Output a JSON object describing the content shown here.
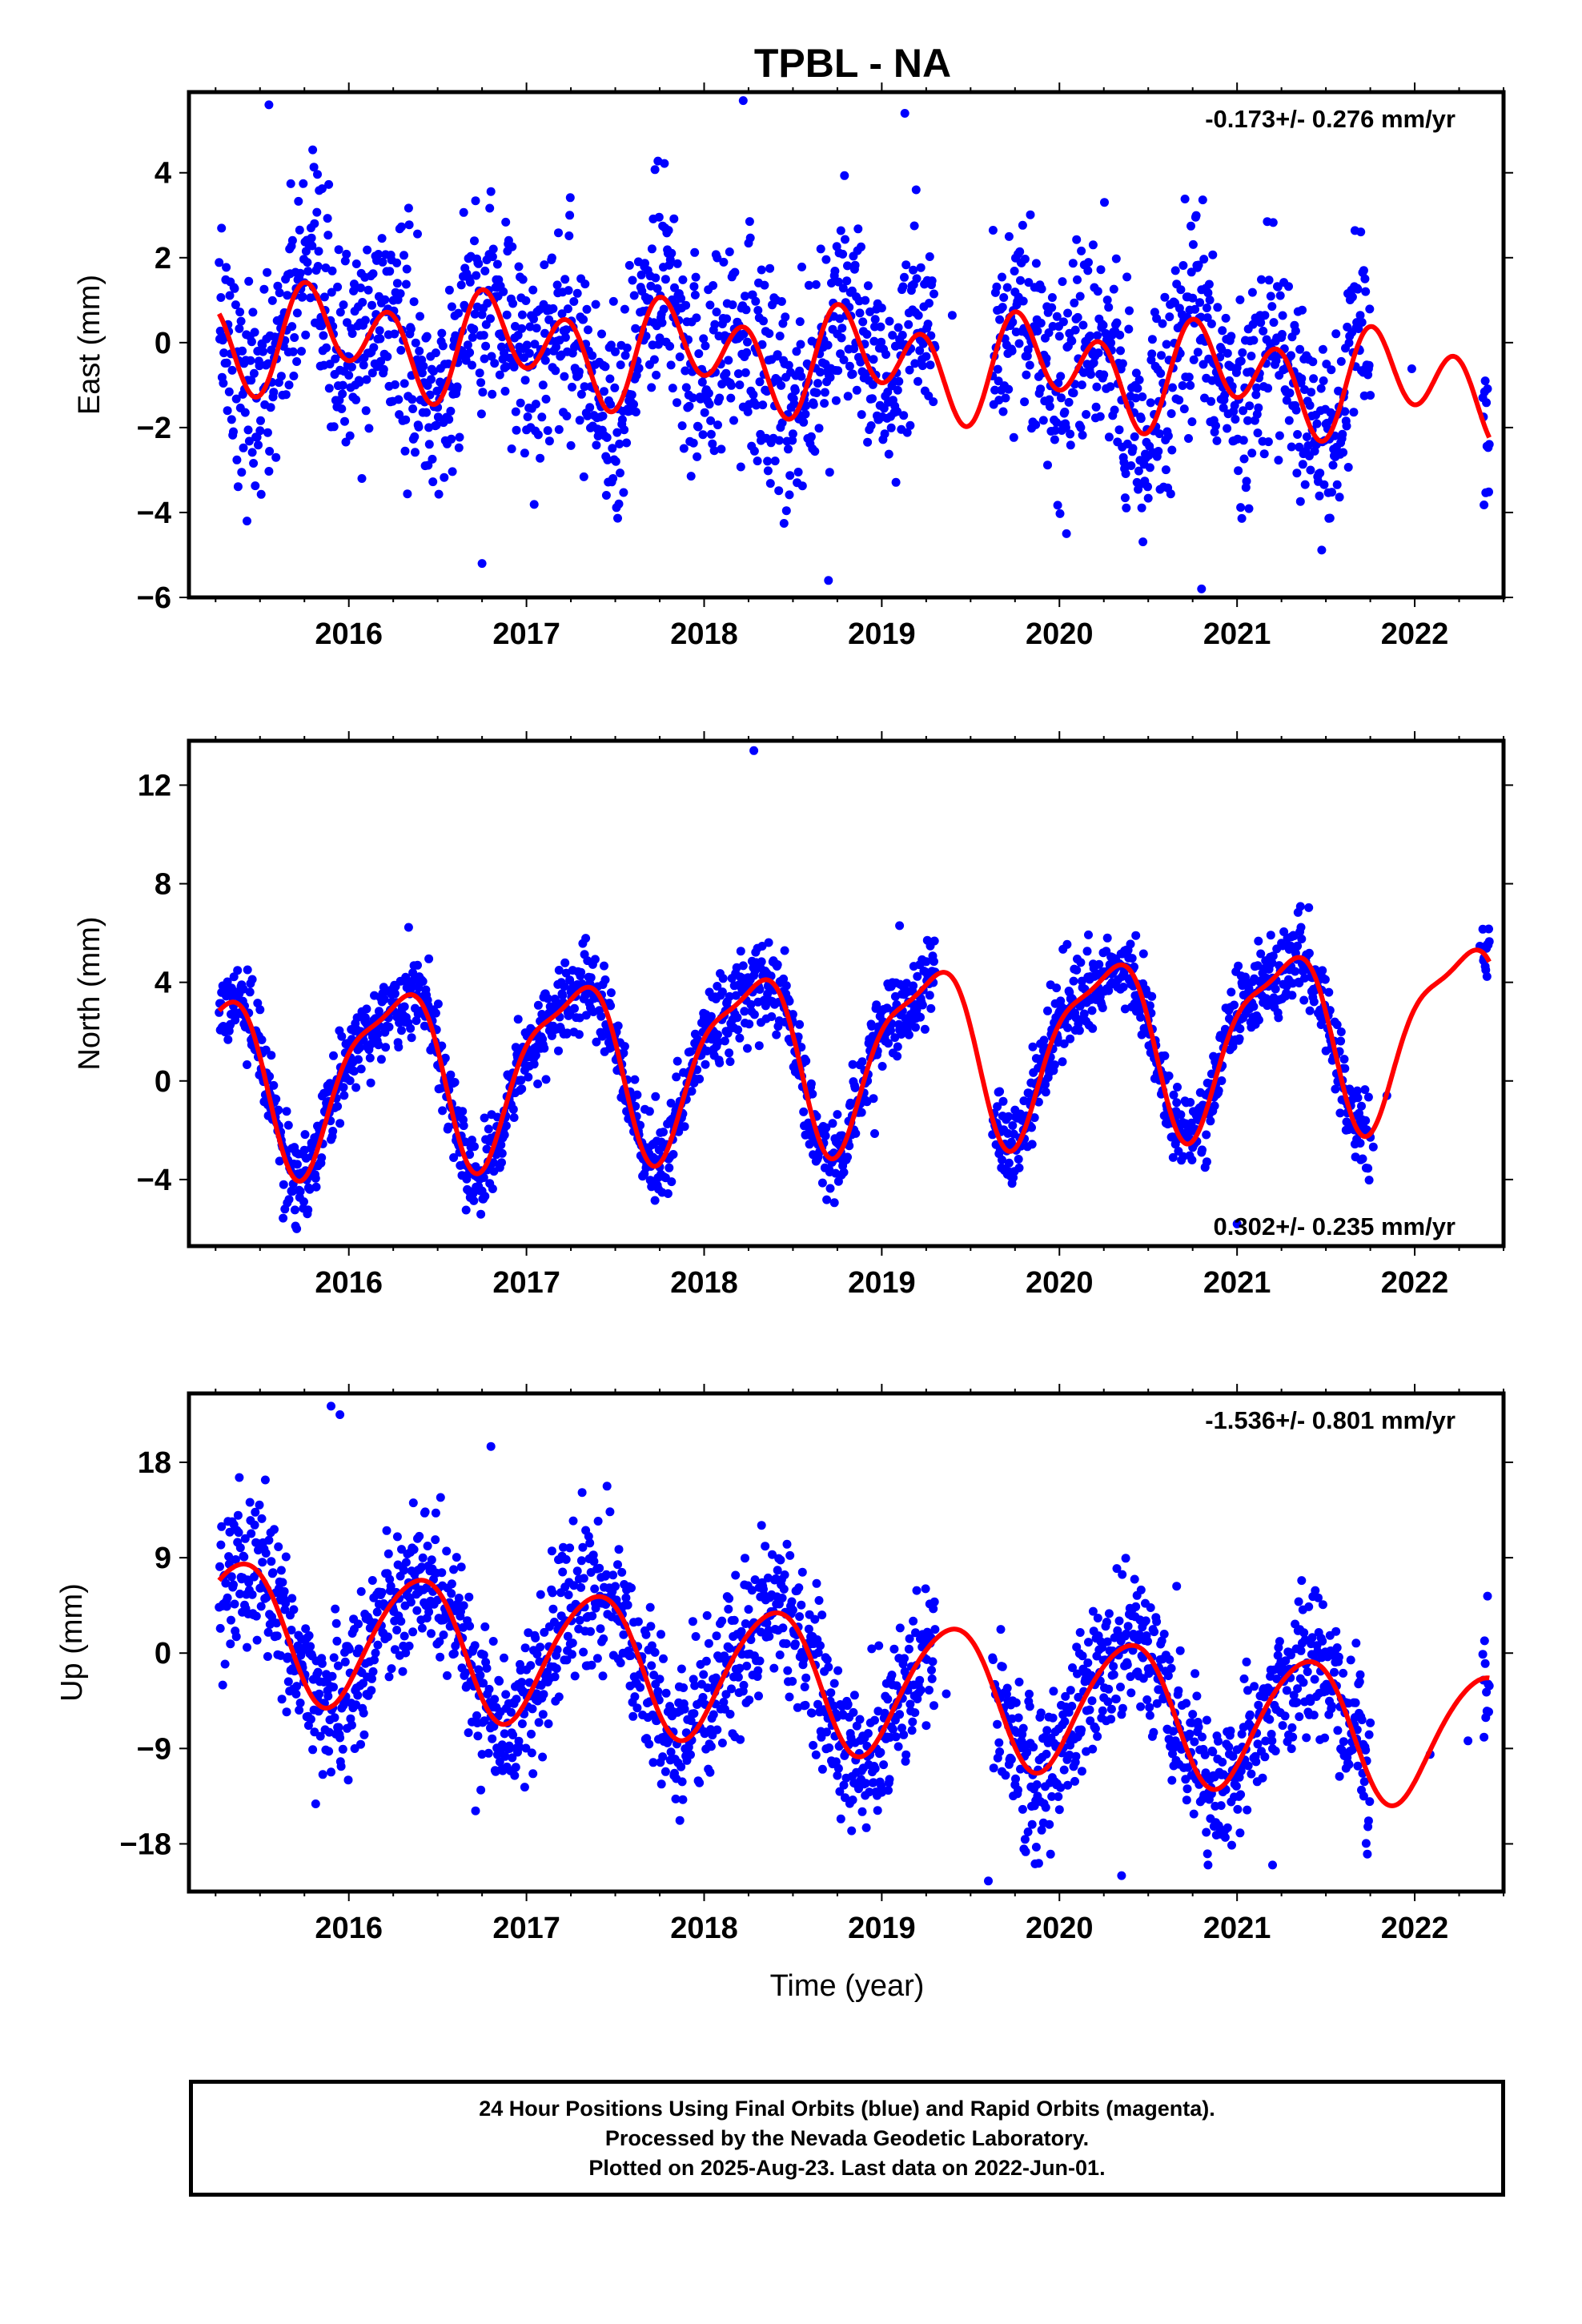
{
  "title": "TPBL - NA",
  "xlabel": "Time (year)",
  "footer": {
    "line1": "24 Hour Positions Using Final Orbits (blue) and Rapid Orbits (magenta).",
    "line2": "Processed by the Nevada Geodetic Laboratory.",
    "line3": "Plotted on 2025-Aug-23. Last data on 2022-Jun-01."
  },
  "colors": {
    "points": "#0000ff",
    "model": "#ff0000",
    "frame": "#000000"
  },
  "chart_data": [
    {
      "type": "scatter",
      "component": "east",
      "ylabel": "East (mm)",
      "rate_label": "-0.173+/- 0.276 mm/yr",
      "rate_position": "top-right",
      "xlim": [
        2015.1,
        2022.5
      ],
      "ylim": [
        -6.0,
        5.9
      ],
      "yticks": [
        -6,
        -4,
        -2,
        0,
        2,
        4
      ],
      "xticks": [
        2016,
        2017,
        2018,
        2019,
        2020,
        2021,
        2022
      ],
      "data_start": 2015.27,
      "data_end": 2022.42,
      "gaps": [
        [
          2019.3,
          2019.62
        ],
        [
          2021.75,
          2022.38
        ]
      ],
      "noise_sd": 1.25,
      "outliers": [
        [
          2015.55,
          5.6
        ],
        [
          2018.22,
          5.7
        ],
        [
          2018.7,
          -5.6
        ],
        [
          2020.8,
          -5.8
        ],
        [
          2016.75,
          -5.2
        ],
        [
          2019.13,
          5.4
        ]
      ],
      "model": {
        "offset": 0.2,
        "rate": -0.173,
        "annual": [
          -0.35,
          0.45
        ],
        "semiannual": [
          0.15,
          -0.95
        ],
        "t0": 2015.27
      }
    },
    {
      "type": "scatter",
      "component": "north",
      "ylabel": "North (mm)",
      "rate_label": "0.302+/- 0.235 mm/yr",
      "rate_position": "bottom-right",
      "xlim": [
        2015.1,
        2022.5
      ],
      "ylim": [
        -6.7,
        13.8
      ],
      "yticks": [
        -4,
        0,
        4,
        8,
        12
      ],
      "xticks": [
        2016,
        2017,
        2018,
        2019,
        2020,
        2021,
        2022
      ],
      "data_start": 2015.27,
      "data_end": 2022.42,
      "gaps": [
        [
          2019.3,
          2019.62
        ],
        [
          2021.75,
          2022.38
        ]
      ],
      "noise_sd": 0.85,
      "outliers": [
        [
          2018.28,
          13.4
        ],
        [
          2019.1,
          6.3
        ],
        [
          2019.95,
          3.9
        ],
        [
          2021.0,
          -5.8
        ]
      ],
      "model": {
        "offset": 0.1,
        "rate": 0.302,
        "annual": [
          3.4,
          0.0
        ],
        "semiannual": [
          -0.6,
          0.8
        ],
        "t0": 2015.27
      }
    },
    {
      "type": "scatter",
      "component": "up",
      "ylabel": "Up (mm)",
      "rate_label": "-1.536+/- 0.801 mm/yr",
      "rate_position": "top-right",
      "xlim": [
        2015.1,
        2022.5
      ],
      "ylim": [
        -22.5,
        24.5
      ],
      "yticks": [
        -18,
        -9,
        0,
        9,
        18
      ],
      "xticks": [
        2016,
        2017,
        2018,
        2019,
        2020,
        2021,
        2022
      ],
      "data_start": 2015.27,
      "data_end": 2022.42,
      "gaps": [
        [
          2019.3,
          2019.62
        ],
        [
          2021.75,
          2022.38
        ]
      ],
      "noise_sd": 3.6,
      "outliers": [
        [
          2015.9,
          23.3
        ],
        [
          2015.95,
          22.5
        ],
        [
          2019.6,
          -21.5
        ],
        [
          2020.35,
          -21.0
        ],
        [
          2021.2,
          -20.0
        ],
        [
          2016.8,
          19.5
        ]
      ],
      "model": {
        "offset": 2.6,
        "rate": -1.536,
        "annual": [
          4.2,
          -4.8
        ],
        "semiannual": [
          0.5,
          0.4
        ],
        "t0": 2015.27
      }
    }
  ]
}
